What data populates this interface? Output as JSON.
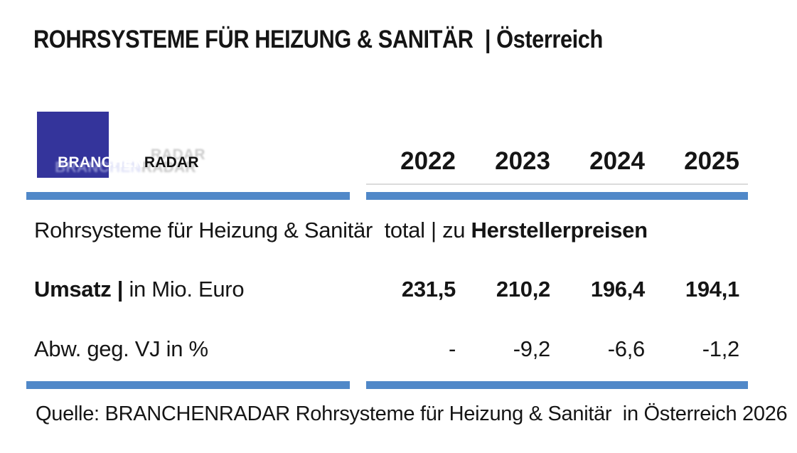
{
  "title": "ROHRSYSTEME FÜR HEIZUNG & SANITÄR  | Österreich",
  "logo": {
    "text_primary": "BRANCHEN",
    "text_secondary": "RADAR"
  },
  "table": {
    "years": [
      "2022",
      "2023",
      "2024",
      "2025"
    ],
    "section_header": {
      "regular": "Rohrsysteme für Heizung & Sanitär  total | zu ",
      "bold": "Herstellerpreisen"
    },
    "rows": [
      {
        "label_bold": "Umsatz | ",
        "label_regular": "in Mio. Euro",
        "values": [
          "231,5",
          "210,2",
          "196,4",
          "194,1"
        ]
      },
      {
        "label_bold": "",
        "label_regular": "Abw. geg. VJ in %",
        "values": [
          "-",
          "-9,2",
          "-6,6",
          "-1,2"
        ]
      }
    ]
  },
  "source": "Quelle: BRANCHENRADAR Rohrsysteme für Heizung & Sanitär  in Österreich 2026",
  "colors": {
    "divider_blue": "#5088C8",
    "logo_blue": "#34349B",
    "text": "#151515"
  }
}
